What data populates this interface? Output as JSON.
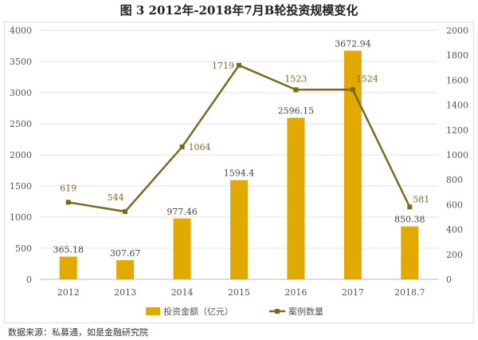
{
  "title": "图 3    2012年-2018年7月B轮投资规模变化",
  "source": "数据来源：私募通，如是金融研究院",
  "chart_data": {
    "type": "bar+line",
    "categories": [
      "2012",
      "2013",
      "2014",
      "2015",
      "2016",
      "2017",
      "2018.7"
    ],
    "series": [
      {
        "name": "投资金额（亿元）",
        "type": "bar",
        "axis": "left",
        "color": "#E2A900",
        "values": [
          365.18,
          307.67,
          977.46,
          1594.4,
          2596.15,
          3672.94,
          850.38
        ],
        "labels": [
          "365.18",
          "307.67",
          "977.46",
          "1594.4",
          "2596.15",
          "3672.94",
          "850.38"
        ]
      },
      {
        "name": "案例数量",
        "type": "line",
        "axis": "right",
        "color": "#7A6A1E",
        "values": [
          619,
          544,
          1064,
          1719,
          1523,
          1524,
          581
        ],
        "labels": [
          "619",
          "544",
          "1064",
          "1719",
          "1523",
          "1524",
          "581"
        ]
      }
    ],
    "yleft": {
      "lim": [
        0,
        4000
      ],
      "ticks": [
        "0",
        "500",
        "1000",
        "1500",
        "2000",
        "2500",
        "3000",
        "3500",
        "4000"
      ]
    },
    "yright": {
      "lim": [
        0,
        2000
      ],
      "ticks": [
        "0",
        "200",
        "400",
        "600",
        "800",
        "1000",
        "1200",
        "1400",
        "1600",
        "1800",
        "2000"
      ]
    },
    "grid": true,
    "legend": "bottom"
  }
}
